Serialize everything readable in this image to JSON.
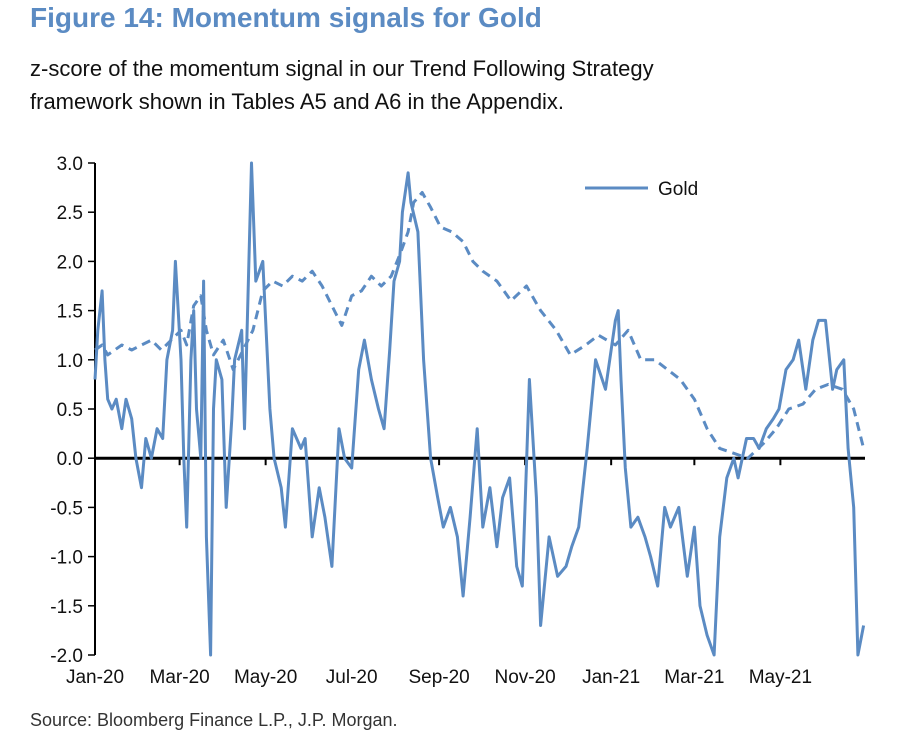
{
  "figure": {
    "title": "Figure 14: Momentum signals for Gold",
    "subtitle_lines": [
      "z-score of the momentum signal in our Trend Following Strategy",
      "framework shown in Tables A5 and A6 in the Appendix."
    ],
    "source": "Source: Bloomberg Finance L.P., J.P. Morgan."
  },
  "chart_data": {
    "type": "line",
    "title": "Figure 14: Momentum signals for Gold",
    "xlabel": "",
    "ylabel": "",
    "ylim": [
      -2.0,
      3.0
    ],
    "xlim": [
      "2020-01-01",
      "2021-06-30"
    ],
    "y_ticks": [
      "-2.0",
      "-1.5",
      "-1.0",
      "-0.5",
      "0.0",
      "0.5",
      "1.0",
      "1.5",
      "2.0",
      "2.5",
      "3.0"
    ],
    "x_ticks": [
      {
        "date": "2020-01-01",
        "label": "Jan-20"
      },
      {
        "date": "2020-03-01",
        "label": "Mar-20"
      },
      {
        "date": "2020-05-01",
        "label": "May-20"
      },
      {
        "date": "2020-07-01",
        "label": "Jul-20"
      },
      {
        "date": "2020-09-01",
        "label": "Sep-20"
      },
      {
        "date": "2020-11-01",
        "label": "Nov-20"
      },
      {
        "date": "2021-01-01",
        "label": "Jan-21"
      },
      {
        "date": "2021-03-01",
        "label": "Mar-21"
      },
      {
        "date": "2021-05-01",
        "label": "May-21"
      }
    ],
    "grid": false,
    "legend_position": "top-right",
    "series_color": "#5b8bc3",
    "zero_line_color": "#000000",
    "series": [
      {
        "name": "Gold",
        "style": "solid",
        "x": [
          "2020-01-01",
          "2020-01-03",
          "2020-01-06",
          "2020-01-08",
          "2020-01-10",
          "2020-01-13",
          "2020-01-16",
          "2020-01-20",
          "2020-01-23",
          "2020-01-27",
          "2020-01-30",
          "2020-02-03",
          "2020-02-06",
          "2020-02-10",
          "2020-02-14",
          "2020-02-18",
          "2020-02-21",
          "2020-02-25",
          "2020-02-27",
          "2020-03-02",
          "2020-03-04",
          "2020-03-06",
          "2020-03-09",
          "2020-03-11",
          "2020-03-13",
          "2020-03-16",
          "2020-03-18",
          "2020-03-20",
          "2020-03-23",
          "2020-03-25",
          "2020-03-27",
          "2020-03-31",
          "2020-04-03",
          "2020-04-07",
          "2020-04-09",
          "2020-04-14",
          "2020-04-16",
          "2020-04-21",
          "2020-04-24",
          "2020-04-29",
          "2020-05-04",
          "2020-05-07",
          "2020-05-12",
          "2020-05-15",
          "2020-05-20",
          "2020-05-26",
          "2020-05-29",
          "2020-06-03",
          "2020-06-08",
          "2020-06-12",
          "2020-06-17",
          "2020-06-22",
          "2020-06-26",
          "2020-07-01",
          "2020-07-06",
          "2020-07-10",
          "2020-07-15",
          "2020-07-20",
          "2020-07-24",
          "2020-07-28",
          "2020-07-31",
          "2020-08-04",
          "2020-08-06",
          "2020-08-10",
          "2020-08-12",
          "2020-08-17",
          "2020-08-21",
          "2020-08-26",
          "2020-08-31",
          "2020-09-04",
          "2020-09-09",
          "2020-09-14",
          "2020-09-18",
          "2020-09-23",
          "2020-09-28",
          "2020-10-02",
          "2020-10-07",
          "2020-10-12",
          "2020-10-16",
          "2020-10-21",
          "2020-10-26",
          "2020-10-30",
          "2020-11-04",
          "2020-11-09",
          "2020-11-12",
          "2020-11-18",
          "2020-11-24",
          "2020-11-30",
          "2020-12-04",
          "2020-12-09",
          "2020-12-15",
          "2020-12-21",
          "2020-12-28",
          "2021-01-04",
          "2021-01-06",
          "2021-01-08",
          "2021-01-11",
          "2021-01-15",
          "2021-01-20",
          "2021-01-25",
          "2021-01-29",
          "2021-02-03",
          "2021-02-08",
          "2021-02-12",
          "2021-02-18",
          "2021-02-24",
          "2021-03-01",
          "2021-03-05",
          "2021-03-10",
          "2021-03-15",
          "2021-03-19",
          "2021-03-24",
          "2021-03-29",
          "2021-04-01",
          "2021-04-07",
          "2021-04-12",
          "2021-04-16",
          "2021-04-21",
          "2021-04-26",
          "2021-04-30",
          "2021-05-05",
          "2021-05-10",
          "2021-05-14",
          "2021-05-19",
          "2021-05-24",
          "2021-05-28",
          "2021-06-02",
          "2021-06-07",
          "2021-06-10",
          "2021-06-15",
          "2021-06-18",
          "2021-06-22",
          "2021-06-25",
          "2021-06-29"
        ],
        "values": [
          0.8,
          1.3,
          1.7,
          1.0,
          0.6,
          0.5,
          0.6,
          0.3,
          0.6,
          0.4,
          0.0,
          -0.3,
          0.2,
          0.0,
          0.3,
          0.2,
          1.0,
          1.3,
          2.0,
          1.0,
          0.0,
          -0.7,
          1.0,
          1.5,
          0.5,
          0.0,
          1.8,
          -0.8,
          -2.0,
          0.5,
          1.0,
          0.8,
          -0.5,
          0.4,
          1.0,
          1.3,
          0.3,
          3.0,
          1.8,
          2.0,
          0.5,
          0.0,
          -0.3,
          -0.7,
          0.3,
          0.1,
          0.2,
          -0.8,
          -0.3,
          -0.6,
          -1.1,
          0.3,
          0.0,
          -0.1,
          0.9,
          1.2,
          0.8,
          0.5,
          0.3,
          1.1,
          1.8,
          2.0,
          2.5,
          2.9,
          2.6,
          2.3,
          1.0,
          0.0,
          -0.4,
          -0.7,
          -0.5,
          -0.8,
          -1.4,
          -0.6,
          0.3,
          -0.7,
          -0.3,
          -0.9,
          -0.4,
          -0.2,
          -1.1,
          -1.3,
          0.8,
          -0.4,
          -1.7,
          -0.8,
          -1.2,
          -1.1,
          -0.9,
          -0.7,
          0.1,
          1.0,
          0.7,
          1.4,
          1.5,
          0.8,
          -0.1,
          -0.7,
          -0.6,
          -0.8,
          -1.0,
          -1.3,
          -0.5,
          -0.7,
          -0.5,
          -1.2,
          -0.7,
          -1.5,
          -1.8,
          -2.0,
          -0.8,
          -0.2,
          0.0,
          -0.2,
          0.2,
          0.2,
          0.1,
          0.3,
          0.4,
          0.5,
          0.9,
          1.0,
          1.2,
          0.7,
          1.2,
          1.4,
          1.4,
          0.7,
          0.9,
          1.0,
          0.1,
          -0.5,
          -2.0,
          -1.7
        ]
      },
      {
        "name": "",
        "style": "dashed",
        "x": [
          "2020-01-01",
          "2020-01-06",
          "2020-01-10",
          "2020-01-15",
          "2020-01-20",
          "2020-01-27",
          "2020-02-03",
          "2020-02-10",
          "2020-02-17",
          "2020-02-24",
          "2020-03-02",
          "2020-03-06",
          "2020-03-11",
          "2020-03-16",
          "2020-03-20",
          "2020-03-25",
          "2020-04-01",
          "2020-04-08",
          "2020-04-15",
          "2020-04-22",
          "2020-04-29",
          "2020-05-06",
          "2020-05-13",
          "2020-05-20",
          "2020-05-27",
          "2020-06-03",
          "2020-06-10",
          "2020-06-17",
          "2020-06-24",
          "2020-07-01",
          "2020-07-08",
          "2020-07-15",
          "2020-07-22",
          "2020-07-29",
          "2020-08-05",
          "2020-08-10",
          "2020-08-14",
          "2020-08-20",
          "2020-08-26",
          "2020-09-02",
          "2020-09-10",
          "2020-09-18",
          "2020-09-25",
          "2020-10-02",
          "2020-10-12",
          "2020-10-22",
          "2020-11-02",
          "2020-11-12",
          "2020-11-23",
          "2020-12-03",
          "2020-12-14",
          "2020-12-23",
          "2021-01-04",
          "2021-01-13",
          "2021-01-22",
          "2021-02-01",
          "2021-02-10",
          "2021-02-19",
          "2021-03-01",
          "2021-03-10",
          "2021-03-19",
          "2021-03-29",
          "2021-04-08",
          "2021-04-19",
          "2021-04-28",
          "2021-05-07",
          "2021-05-17",
          "2021-05-26",
          "2021-06-04",
          "2021-06-14",
          "2021-06-22",
          "2021-06-29"
        ],
        "values": [
          1.1,
          1.15,
          1.05,
          1.1,
          1.15,
          1.1,
          1.15,
          1.2,
          1.1,
          1.2,
          1.3,
          1.15,
          1.55,
          1.65,
          1.3,
          1.05,
          1.2,
          0.9,
          1.1,
          1.3,
          1.7,
          1.8,
          1.75,
          1.85,
          1.8,
          1.9,
          1.75,
          1.55,
          1.35,
          1.65,
          1.7,
          1.85,
          1.75,
          1.85,
          2.1,
          2.3,
          2.6,
          2.7,
          2.55,
          2.35,
          2.3,
          2.2,
          2.0,
          1.9,
          1.8,
          1.6,
          1.75,
          1.5,
          1.3,
          1.05,
          1.15,
          1.25,
          1.15,
          1.3,
          1.0,
          1.0,
          0.9,
          0.8,
          0.6,
          0.3,
          0.1,
          0.05,
          0.0,
          0.15,
          0.3,
          0.5,
          0.55,
          0.7,
          0.75,
          0.7,
          0.5,
          0.1
        ]
      }
    ]
  }
}
